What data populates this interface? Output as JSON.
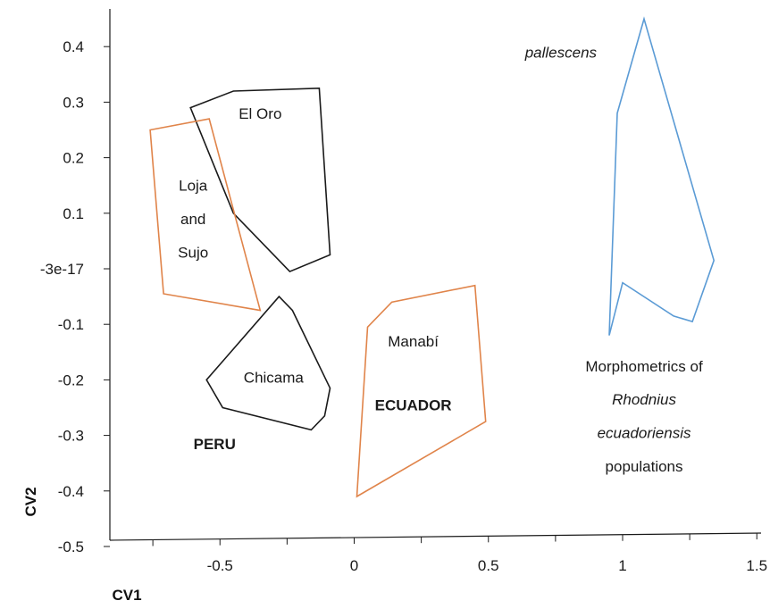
{
  "chart_data": {
    "type": "scatter",
    "xlabel": "CV1",
    "ylabel": "CV2",
    "x_ticks": [
      {
        "value": -0.5,
        "label": "-0.5"
      },
      {
        "value": 0,
        "label": "0"
      },
      {
        "value": 0.5,
        "label": "0.5"
      },
      {
        "value": 1,
        "label": "1"
      },
      {
        "value": 1.5,
        "label": "1.5"
      }
    ],
    "y_ticks": [
      {
        "value": 0.4,
        "label": "0.4"
      },
      {
        "value": 0.3,
        "label": "0.3"
      },
      {
        "value": 0.2,
        "label": "0.2"
      },
      {
        "value": 0.1,
        "label": "0.1"
      },
      {
        "value": 0,
        "label": "-3e-17"
      },
      {
        "value": -0.1,
        "label": "-0.1"
      },
      {
        "value": -0.2,
        "label": "-0.2"
      },
      {
        "value": -0.3,
        "label": "-0.3"
      },
      {
        "value": -0.4,
        "label": "-0.4"
      },
      {
        "value": -0.5,
        "label": "-0.5"
      }
    ],
    "xlim": [
      -0.9,
      1.5
    ],
    "ylim": [
      -0.5,
      0.47
    ],
    "grid": false,
    "series": [
      {
        "name": "El Oro",
        "color": "#1a1a1a",
        "polygon": [
          [
            -0.61,
            0.29
          ],
          [
            -0.45,
            0.32
          ],
          [
            -0.13,
            0.325
          ],
          [
            -0.09,
            0.025
          ],
          [
            -0.24,
            -0.005
          ],
          [
            -0.45,
            0.1
          ]
        ]
      },
      {
        "name": "Loja and Sujo",
        "color": "#e0844a",
        "polygon": [
          [
            -0.76,
            0.25
          ],
          [
            -0.54,
            0.27
          ],
          [
            -0.35,
            -0.075
          ],
          [
            -0.71,
            -0.045
          ]
        ]
      },
      {
        "name": "Chicama",
        "color": "#1a1a1a",
        "polygon": [
          [
            -0.28,
            -0.05
          ],
          [
            -0.23,
            -0.075
          ],
          [
            -0.09,
            -0.215
          ],
          [
            -0.11,
            -0.265
          ],
          [
            -0.16,
            -0.29
          ],
          [
            -0.49,
            -0.25
          ],
          [
            -0.55,
            -0.2
          ]
        ]
      },
      {
        "name": "Manabí",
        "color": "#e0844a",
        "polygon": [
          [
            0.05,
            -0.105
          ],
          [
            0.14,
            -0.06
          ],
          [
            0.45,
            -0.03
          ],
          [
            0.49,
            -0.275
          ],
          [
            0.01,
            -0.41
          ]
        ]
      },
      {
        "name": "pallescens",
        "color": "#5b9bd5",
        "polygon": [
          [
            1.08,
            0.45
          ],
          [
            0.98,
            0.28
          ],
          [
            0.95,
            -0.12
          ],
          [
            1.0,
            -0.025
          ],
          [
            1.19,
            -0.085
          ],
          [
            1.26,
            -0.095
          ],
          [
            1.34,
            0.015
          ]
        ]
      }
    ],
    "annotations": [
      {
        "key": "el_oro",
        "text": "El Oro",
        "x": -0.35,
        "y": 0.28,
        "style": "normal"
      },
      {
        "key": "loja1",
        "text": "Loja",
        "x": -0.6,
        "y": 0.15,
        "style": "normal"
      },
      {
        "key": "loja2",
        "text": "and",
        "x": -0.6,
        "y": 0.09,
        "style": "normal"
      },
      {
        "key": "loja3",
        "text": "Sujo",
        "x": -0.6,
        "y": 0.03,
        "style": "normal"
      },
      {
        "key": "chicama",
        "text": "Chicama",
        "x": -0.3,
        "y": -0.195,
        "style": "normal"
      },
      {
        "key": "peru",
        "text": "PERU",
        "x": -0.52,
        "y": -0.315,
        "style": "bold"
      },
      {
        "key": "manabi",
        "text": "Manabí",
        "x": 0.22,
        "y": -0.13,
        "style": "normal"
      },
      {
        "key": "ecuador",
        "text": "ECUADOR",
        "x": 0.22,
        "y": -0.245,
        "style": "bold"
      },
      {
        "key": "pallescens",
        "text": "pallescens",
        "x": 0.77,
        "y": 0.39,
        "style": "italic"
      },
      {
        "key": "morph1",
        "text": "Morphometrics of",
        "x": 1.08,
        "y": -0.175,
        "style": "normal"
      },
      {
        "key": "morph2",
        "text": "Rhodnius",
        "x": 1.08,
        "y": -0.235,
        "style": "italic"
      },
      {
        "key": "morph3",
        "text": "ecuadoriensis",
        "x": 1.08,
        "y": -0.295,
        "style": "italic"
      },
      {
        "key": "morph4",
        "text": "populations",
        "x": 1.08,
        "y": -0.355,
        "style": "normal"
      }
    ]
  }
}
